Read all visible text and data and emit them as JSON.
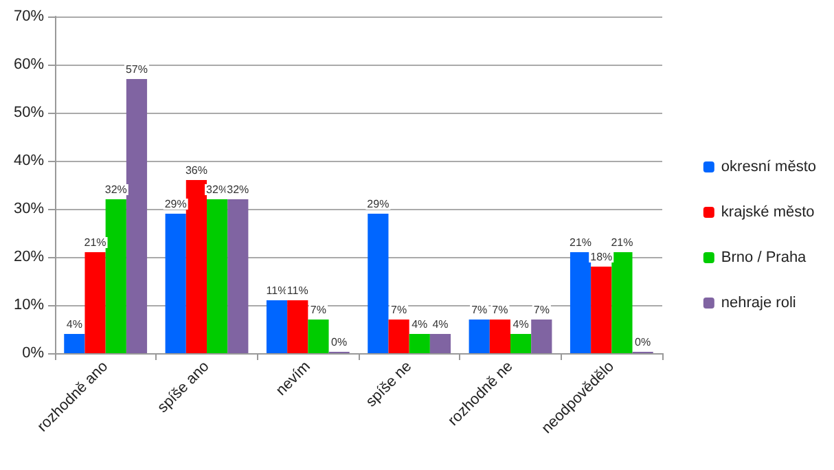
{
  "chart_data": {
    "type": "bar",
    "categories": [
      "rozhodně ano",
      "spíše ano",
      "nevím",
      "spíše ne",
      "rozhodně ne",
      "neodpovědělo"
    ],
    "series": [
      {
        "name": "okresní město",
        "color": "#0066ff",
        "values": [
          4,
          29,
          11,
          29,
          7,
          21
        ],
        "value_labels": [
          "4%",
          "29%",
          "11%",
          "29%",
          "7%",
          "21%"
        ]
      },
      {
        "name": "krajské město",
        "color": "#ff0000",
        "values": [
          21,
          36,
          11,
          7,
          7,
          18
        ],
        "value_labels": [
          "21%",
          "36%",
          "11%",
          "7%",
          "7%",
          "18%"
        ]
      },
      {
        "name": "Brno / Praha",
        "color": "#00cc00",
        "values": [
          32,
          32,
          7,
          4,
          4,
          21
        ],
        "value_labels": [
          "32%",
          "32%",
          "7%",
          "4%",
          "4%",
          "21%"
        ]
      },
      {
        "name": "nehraje roli",
        "color": "#8064a2",
        "values": [
          57,
          32,
          0,
          4,
          7,
          0
        ],
        "value_labels": [
          "57%",
          "32%",
          "0%",
          "4%",
          "7%",
          "0%"
        ]
      }
    ],
    "ylim": [
      0,
      70
    ],
    "yticks": [
      {
        "value": 0,
        "label": "0%"
      },
      {
        "value": 10,
        "label": "10%"
      },
      {
        "value": 20,
        "label": "20%"
      },
      {
        "value": 30,
        "label": "30%"
      },
      {
        "value": 40,
        "label": "40%"
      },
      {
        "value": 50,
        "label": "50%"
      },
      {
        "value": 60,
        "label": "60%"
      },
      {
        "value": 70,
        "label": "70%"
      }
    ],
    "grid": "y",
    "legend": "right"
  }
}
